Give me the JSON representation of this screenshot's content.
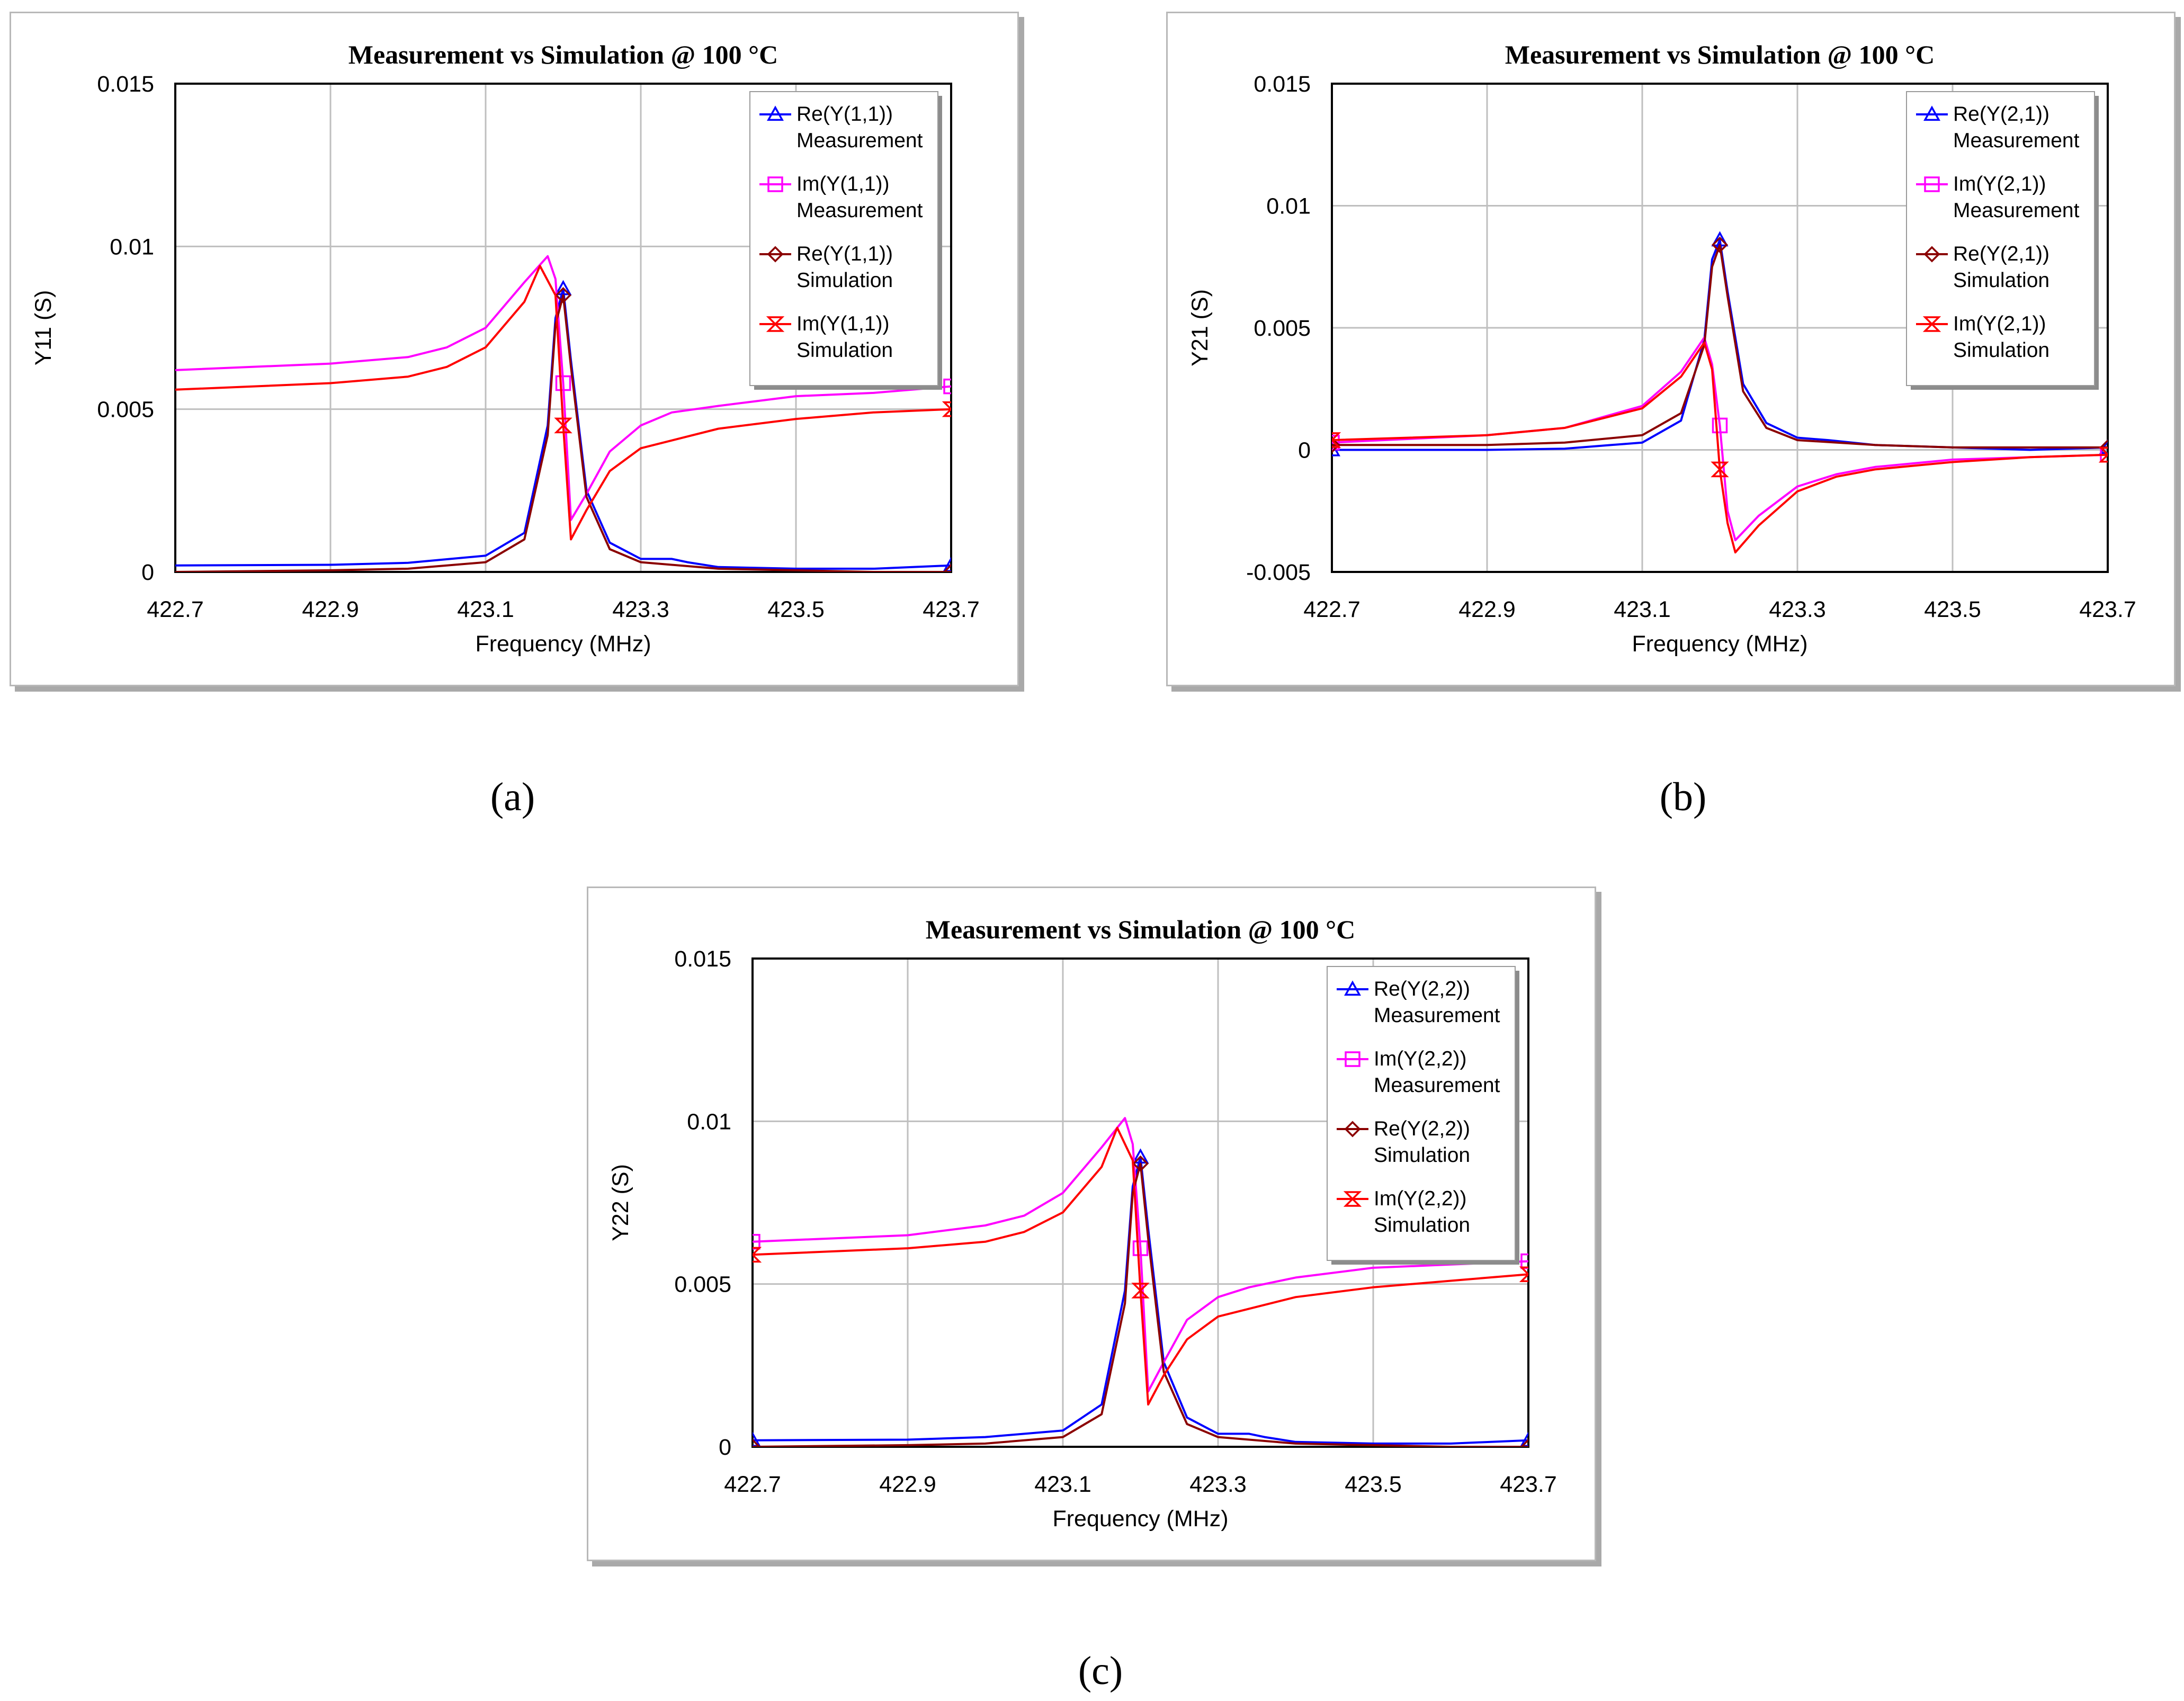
{
  "figure": {
    "captions": [
      "(a)",
      "(b)",
      "(c)"
    ]
  },
  "colors": {
    "re_meas": "#0000ff",
    "im_meas": "#ff00ff",
    "re_sim": "#8b0000",
    "im_sim": "#ff0000",
    "grid": "#bfbfbf"
  },
  "chart_data": [
    {
      "id": "a",
      "type": "line",
      "title": "Measurement vs Simulation @ 100 °C",
      "xlabel": "Frequency (MHz)",
      "ylabel": "Y11 (S)",
      "xlim": [
        422.7,
        423.7
      ],
      "ylim": [
        0,
        0.015
      ],
      "xticks": [
        "422.7",
        "422.9",
        "423.1",
        "423.3",
        "423.5",
        "423.7"
      ],
      "yticks": [
        "0",
        "0.005",
        "0.01",
        "0.015"
      ],
      "grid": true,
      "legend_position": "top-right",
      "series": [
        {
          "name": "Re(Y(1,1))",
          "sub": "Measurement",
          "marker": "triangle",
          "color_key": "re_meas",
          "x": [
            422.7,
            422.9,
            423.0,
            423.1,
            423.15,
            423.18,
            423.19,
            423.2,
            423.21,
            423.23,
            423.26,
            423.3,
            423.34,
            423.36,
            423.4,
            423.5,
            423.6,
            423.7
          ],
          "y": [
            0.0002,
            0.00022,
            0.00028,
            0.0005,
            0.0012,
            0.0045,
            0.0078,
            0.0087,
            0.0065,
            0.0025,
            0.0009,
            0.0004,
            0.0004,
            0.0003,
            0.00015,
            0.0001,
            0.0001,
            0.0002
          ]
        },
        {
          "name": "Im(Y(1,1))",
          "sub": "Measurement",
          "marker": "square",
          "color_key": "im_meas",
          "x": [
            422.7,
            422.9,
            423.0,
            423.05,
            423.1,
            423.15,
            423.18,
            423.19,
            423.2,
            423.21,
            423.23,
            423.26,
            423.3,
            423.34,
            423.4,
            423.5,
            423.6,
            423.7
          ],
          "y": [
            0.0062,
            0.0064,
            0.0066,
            0.0069,
            0.0075,
            0.0089,
            0.0097,
            0.009,
            0.0058,
            0.0016,
            0.0024,
            0.0037,
            0.0045,
            0.0049,
            0.0051,
            0.0054,
            0.0055,
            0.0057
          ]
        },
        {
          "name": "Re(Y(1,1))",
          "sub": "Simulation",
          "marker": "diamond",
          "color_key": "re_sim",
          "x": [
            422.7,
            422.9,
            423.0,
            423.1,
            423.15,
            423.18,
            423.19,
            423.2,
            423.21,
            423.23,
            423.26,
            423.3,
            423.4,
            423.5,
            423.6,
            423.7
          ],
          "y": [
            0.0,
            5e-05,
            0.0001,
            0.0003,
            0.001,
            0.0042,
            0.0076,
            0.0085,
            0.0063,
            0.0023,
            0.0007,
            0.0003,
            0.0001,
            5e-05,
            0.0,
            0.0
          ]
        },
        {
          "name": "Im(Y(1,1))",
          "sub": "Simulation",
          "marker": "hourglass",
          "color_key": "im_sim",
          "x": [
            422.7,
            422.9,
            423.0,
            423.05,
            423.1,
            423.15,
            423.17,
            423.19,
            423.2,
            423.21,
            423.23,
            423.26,
            423.3,
            423.4,
            423.5,
            423.6,
            423.7
          ],
          "y": [
            0.0056,
            0.0058,
            0.006,
            0.0063,
            0.0069,
            0.0083,
            0.0094,
            0.0085,
            0.0045,
            0.001,
            0.0019,
            0.0031,
            0.0038,
            0.0044,
            0.0047,
            0.0049,
            0.005
          ]
        }
      ],
      "markers_x": [
        423.2,
        423.7
      ]
    },
    {
      "id": "b",
      "type": "line",
      "title": "Measurement vs Simulation @ 100 °C",
      "xlabel": "Frequency (MHz)",
      "ylabel": "Y21 (S)",
      "xlim": [
        422.7,
        423.7
      ],
      "ylim": [
        -0.005,
        0.015
      ],
      "xticks": [
        "422.7",
        "422.9",
        "423.1",
        "423.3",
        "423.5",
        "423.7"
      ],
      "yticks": [
        "-0.005",
        "0",
        "0.005",
        "0.01",
        "0.015"
      ],
      "grid": true,
      "legend_position": "top-right",
      "series": [
        {
          "name": "Re(Y(2,1))",
          "sub": "Measurement",
          "marker": "triangle",
          "color_key": "re_meas",
          "x": [
            422.7,
            422.9,
            423.0,
            423.1,
            423.15,
            423.18,
            423.19,
            423.2,
            423.21,
            423.23,
            423.26,
            423.3,
            423.34,
            423.4,
            423.5,
            423.6,
            423.7
          ],
          "y": [
            0.0,
            0.0,
            5e-05,
            0.0003,
            0.0012,
            0.0045,
            0.0078,
            0.0086,
            0.0065,
            0.0027,
            0.0011,
            0.0005,
            0.0004,
            0.0002,
            0.0001,
            0.0,
            0.0001
          ]
        },
        {
          "name": "Im(Y(2,1))",
          "sub": "Measurement",
          "marker": "square",
          "color_key": "im_meas",
          "x": [
            422.7,
            422.9,
            423.0,
            423.1,
            423.15,
            423.18,
            423.19,
            423.2,
            423.21,
            423.22,
            423.25,
            423.3,
            423.35,
            423.4,
            423.5,
            423.6,
            423.7
          ],
          "y": [
            0.0003,
            0.0006,
            0.0009,
            0.0018,
            0.0032,
            0.0046,
            0.0035,
            0.001,
            -0.0025,
            -0.0037,
            -0.0027,
            -0.0015,
            -0.001,
            -0.0007,
            -0.0004,
            -0.0003,
            -0.0002
          ]
        },
        {
          "name": "Re(Y(2,1))",
          "sub": "Simulation",
          "marker": "diamond",
          "color_key": "re_sim",
          "x": [
            422.7,
            422.9,
            423.0,
            423.1,
            423.15,
            423.18,
            423.19,
            423.2,
            423.21,
            423.23,
            423.26,
            423.3,
            423.4,
            423.5,
            423.6,
            423.7
          ],
          "y": [
            0.0002,
            0.0002,
            0.0003,
            0.0006,
            0.0015,
            0.0043,
            0.0075,
            0.0084,
            0.0063,
            0.0024,
            0.0009,
            0.0004,
            0.0002,
            0.0001,
            0.0001,
            0.0001
          ]
        },
        {
          "name": "Im(Y(2,1))",
          "sub": "Simulation",
          "marker": "hourglass",
          "color_key": "im_sim",
          "x": [
            422.7,
            422.9,
            423.0,
            423.1,
            423.15,
            423.18,
            423.19,
            423.2,
            423.21,
            423.22,
            423.25,
            423.3,
            423.35,
            423.4,
            423.5,
            423.6,
            423.7
          ],
          "y": [
            0.0004,
            0.0006,
            0.0009,
            0.0017,
            0.003,
            0.0044,
            0.0033,
            -0.0008,
            -0.003,
            -0.0042,
            -0.0031,
            -0.0017,
            -0.0011,
            -0.0008,
            -0.0005,
            -0.0003,
            -0.0002
          ]
        }
      ],
      "markers_x": [
        422.7,
        423.2,
        423.7
      ]
    },
    {
      "id": "c",
      "type": "line",
      "title": "Measurement vs Simulation @ 100 °C",
      "xlabel": "Frequency (MHz)",
      "ylabel": "Y22 (S)",
      "xlim": [
        422.7,
        423.7
      ],
      "ylim": [
        0,
        0.015
      ],
      "xticks": [
        "422.7",
        "422.9",
        "423.1",
        "423.3",
        "423.5",
        "423.7"
      ],
      "yticks": [
        "0",
        "0.005",
        "0.01",
        "0.015"
      ],
      "grid": true,
      "legend_position": "top-right",
      "series": [
        {
          "name": "Re(Y(2,2))",
          "sub": "Measurement",
          "marker": "triangle",
          "color_key": "re_meas",
          "x": [
            422.7,
            422.9,
            423.0,
            423.1,
            423.15,
            423.18,
            423.19,
            423.2,
            423.21,
            423.23,
            423.26,
            423.3,
            423.34,
            423.36,
            423.4,
            423.5,
            423.6,
            423.7
          ],
          "y": [
            0.0002,
            0.00022,
            0.0003,
            0.0005,
            0.0013,
            0.0048,
            0.008,
            0.0089,
            0.0067,
            0.0026,
            0.0009,
            0.0004,
            0.0004,
            0.0003,
            0.00015,
            0.0001,
            0.0001,
            0.0002
          ]
        },
        {
          "name": "Im(Y(2,2))",
          "sub": "Measurement",
          "marker": "square",
          "color_key": "im_meas",
          "x": [
            422.7,
            422.9,
            423.0,
            423.05,
            423.1,
            423.15,
            423.18,
            423.19,
            423.2,
            423.21,
            423.23,
            423.26,
            423.3,
            423.34,
            423.4,
            423.5,
            423.6,
            423.7
          ],
          "y": [
            0.0063,
            0.0065,
            0.0068,
            0.0071,
            0.0078,
            0.0092,
            0.0101,
            0.0093,
            0.0061,
            0.0017,
            0.0026,
            0.0039,
            0.0046,
            0.0049,
            0.0052,
            0.0055,
            0.0056,
            0.0057
          ]
        },
        {
          "name": "Re(Y(2,2))",
          "sub": "Simulation",
          "marker": "diamond",
          "color_key": "re_sim",
          "x": [
            422.7,
            422.9,
            423.0,
            423.1,
            423.15,
            423.18,
            423.19,
            423.2,
            423.21,
            423.23,
            423.26,
            423.3,
            423.4,
            423.5,
            423.6,
            423.7
          ],
          "y": [
            0.0,
            5e-05,
            0.0001,
            0.0003,
            0.001,
            0.0044,
            0.0078,
            0.0087,
            0.0064,
            0.0023,
            0.0007,
            0.0003,
            0.0001,
            5e-05,
            0.0,
            0.0
          ]
        },
        {
          "name": "Im(Y(2,2))",
          "sub": "Simulation",
          "marker": "hourglass",
          "color_key": "im_sim",
          "x": [
            422.7,
            422.9,
            423.0,
            423.05,
            423.1,
            423.15,
            423.17,
            423.19,
            423.2,
            423.21,
            423.23,
            423.26,
            423.3,
            423.4,
            423.5,
            423.6,
            423.7
          ],
          "y": [
            0.0059,
            0.0061,
            0.0063,
            0.0066,
            0.0072,
            0.0086,
            0.0098,
            0.0088,
            0.0048,
            0.0013,
            0.0022,
            0.0033,
            0.004,
            0.0046,
            0.0049,
            0.0051,
            0.0053
          ]
        }
      ],
      "markers_x": [
        422.7,
        423.2,
        423.7
      ]
    }
  ]
}
